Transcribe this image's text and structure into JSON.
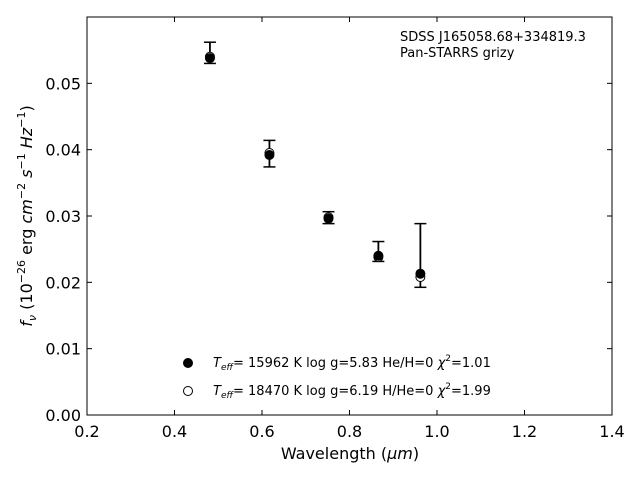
{
  "chart_data": {
    "type": "scatter",
    "title": "",
    "xlabel_text": "Wavelength (",
    "xlabel_unit": "μm",
    "xlabel_close": ")",
    "ylabel": {
      "f": "f",
      "nu": "ν",
      "p1": " (10",
      "exp1": "−26",
      "p2": " erg ",
      "cm": "cm",
      "exp2": "−2",
      "s": " s",
      "exp3": "−1",
      "hz": " Hz",
      "exp4": "−1",
      "p3": ")"
    },
    "xlim": [
      0.2,
      1.4
    ],
    "ylim": [
      0.0,
      0.06
    ],
    "xticks": [
      0.2,
      0.4,
      0.6,
      0.8,
      1.0,
      1.2,
      1.4
    ],
    "xtick_labels": [
      "0.2",
      "0.4",
      "0.6",
      "0.8",
      "1.0",
      "1.2",
      "1.4"
    ],
    "yticks": [
      0.0,
      0.01,
      0.02,
      0.03,
      0.04,
      0.05
    ],
    "ytick_labels": [
      "0.00",
      "0.01",
      "0.02",
      "0.03",
      "0.04",
      "0.05"
    ],
    "annotation": [
      "SDSS J165058.68+334819.3",
      "Pan-STARRS grizy"
    ],
    "observed": {
      "x": [
        0.481,
        0.617,
        0.752,
        0.866,
        0.962
      ],
      "y": [
        0.0546,
        0.0394,
        0.02975,
        0.02465,
        0.02405
      ],
      "yerr": [
        0.0016,
        0.002,
        0.0009,
        0.0015,
        0.0048
      ]
    },
    "series": [
      {
        "marker": "filled",
        "legend": {
          "T": "T",
          "sub": "eff",
          "text": "= 15962 K  log g=5.83  He/H=0  ",
          "chi": "χ",
          "sup": "2",
          "end": "=1.01"
        },
        "x": [
          0.481,
          0.617,
          0.752,
          0.866,
          0.962
        ],
        "y": [
          0.0538,
          0.0392,
          0.0296,
          0.024,
          0.0213
        ]
      },
      {
        "marker": "open",
        "legend": {
          "T": "T",
          "sub": "eff",
          "text": "= 18470 K  log g=6.19  H/He=0  ",
          "chi": "χ",
          "sup": "2",
          "end": "=1.99"
        },
        "x": [
          0.481,
          0.617,
          0.752,
          0.866,
          0.962
        ],
        "y": [
          0.054,
          0.0395,
          0.0298,
          0.0238,
          0.0208
        ]
      }
    ],
    "legend_position": "lower-center",
    "grid": false
  }
}
